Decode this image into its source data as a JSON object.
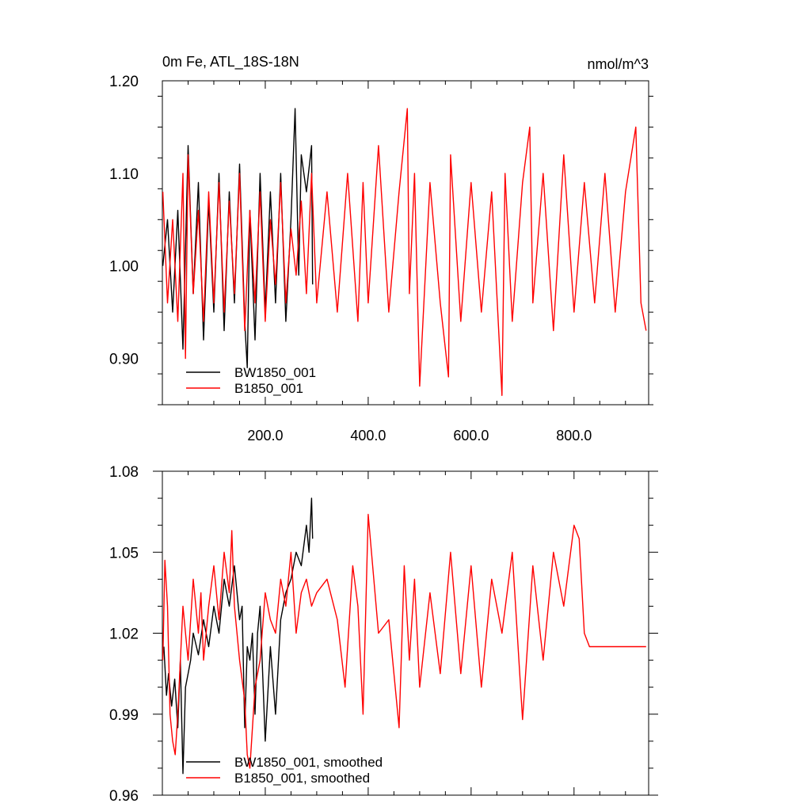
{
  "chart_data": [
    {
      "type": "line",
      "title": "0m Fe, ATL_18S-18N",
      "units": "nmol/m^3",
      "xlim": [
        0,
        945
      ],
      "ylim": [
        0.85,
        1.2
      ],
      "x_tick_values": [
        200,
        400,
        600,
        800
      ],
      "x_tick_labels": [
        "200.0",
        "400.0",
        "600.0",
        "800.0"
      ],
      "y_tick_values": [
        0.9,
        1.0,
        1.1,
        1.2
      ],
      "y_tick_labels": [
        "0.90",
        "1.00",
        "1.10",
        "1.20"
      ],
      "legend_location": "bottom-left",
      "series": [
        {
          "name": "BW1850_001",
          "color": "#000000",
          "x": [
            1,
            10,
            20,
            30,
            40,
            50,
            60,
            70,
            80,
            90,
            100,
            110,
            120,
            130,
            140,
            150,
            160,
            165,
            170,
            180,
            190,
            200,
            210,
            220,
            230,
            240,
            250,
            258,
            265,
            270,
            280,
            290,
            292
          ],
          "values": [
            1.0,
            1.05,
            0.95,
            1.06,
            0.91,
            1.13,
            0.97,
            1.09,
            0.92,
            1.07,
            0.95,
            1.1,
            0.93,
            1.08,
            0.96,
            1.11,
            0.94,
            0.89,
            1.06,
            0.92,
            1.1,
            0.95,
            1.08,
            0.96,
            1.1,
            0.94,
            1.05,
            1.17,
            0.99,
            1.12,
            1.08,
            1.13,
            0.98
          ]
        },
        {
          "name": "B1850_001",
          "color": "#ff0000",
          "x": [
            1,
            10,
            20,
            30,
            40,
            45,
            50,
            60,
            70,
            80,
            90,
            100,
            110,
            120,
            130,
            140,
            150,
            160,
            170,
            180,
            190,
            200,
            210,
            220,
            230,
            240,
            250,
            260,
            270,
            280,
            290,
            300,
            320,
            340,
            360,
            380,
            390,
            400,
            420,
            440,
            460,
            476,
            480,
            490,
            500,
            520,
            540,
            556,
            560,
            580,
            600,
            620,
            640,
            660,
            666,
            680,
            700,
            714,
            720,
            740,
            760,
            780,
            800,
            820,
            840,
            860,
            880,
            900,
            920,
            930,
            940
          ],
          "values": [
            1.08,
            0.96,
            1.05,
            0.94,
            1.1,
            0.9,
            1.12,
            0.97,
            1.06,
            0.94,
            1.08,
            0.96,
            1.09,
            0.95,
            1.07,
            0.97,
            1.1,
            0.93,
            1.06,
            0.96,
            1.08,
            0.94,
            1.05,
            0.98,
            1.09,
            0.96,
            1.04,
            0.99,
            1.07,
            0.97,
            1.1,
            0.96,
            1.08,
            0.95,
            1.1,
            0.94,
            1.09,
            0.96,
            1.13,
            0.95,
            1.08,
            1.17,
            0.97,
            1.1,
            0.87,
            1.09,
            0.96,
            0.88,
            1.12,
            0.94,
            1.09,
            0.95,
            1.08,
            0.86,
            1.1,
            0.94,
            1.09,
            1.15,
            0.96,
            1.1,
            0.93,
            1.12,
            0.95,
            1.09,
            0.96,
            1.1,
            0.95,
            1.08,
            1.15,
            0.96,
            0.93
          ]
        }
      ]
    },
    {
      "type": "line",
      "xlim": [
        0,
        945
      ],
      "ylim": [
        0.96,
        1.08
      ],
      "x_tick_values": [
        200,
        400,
        600,
        800
      ],
      "y_tick_values": [
        0.96,
        0.99,
        1.02,
        1.05,
        1.08
      ],
      "y_tick_labels": [
        "0.96",
        "0.99",
        "1.02",
        "1.05",
        "1.08"
      ],
      "legend_location": "bottom-left",
      "series": [
        {
          "name": "BW1850_001, smoothed",
          "color": "#000000",
          "x": [
            3,
            8,
            12,
            18,
            24,
            30,
            35,
            40,
            45,
            50,
            55,
            60,
            70,
            80,
            90,
            100,
            110,
            120,
            130,
            140,
            150,
            155,
            160,
            165,
            170,
            175,
            180,
            185,
            190,
            200,
            210,
            220,
            230,
            240,
            250,
            260,
            270,
            280,
            285,
            290,
            292
          ],
          "values": [
            1.015,
            0.997,
            1.005,
            0.993,
            1.003,
            0.985,
            1.01,
            0.968,
            1.0,
            1.005,
            1.01,
            1.02,
            1.012,
            1.025,
            1.015,
            1.03,
            1.02,
            1.04,
            1.03,
            1.045,
            1.025,
            1.03,
            0.985,
            1.015,
            1.01,
            1.02,
            0.99,
            1.02,
            1.03,
            0.98,
            1.015,
            0.99,
            1.025,
            1.035,
            1.04,
            1.05,
            1.045,
            1.06,
            1.05,
            1.07,
            1.055
          ]
        },
        {
          "name": "B1850_001, smoothed",
          "color": "#ff0000",
          "x": [
            1,
            5,
            10,
            15,
            20,
            25,
            30,
            40,
            50,
            60,
            70,
            75,
            80,
            90,
            100,
            110,
            120,
            130,
            135,
            140,
            150,
            160,
            165,
            170,
            180,
            190,
            200,
            210,
            220,
            230,
            240,
            250,
            260,
            270,
            280,
            290,
            300,
            320,
            340,
            355,
            370,
            380,
            390,
            400,
            420,
            440,
            460,
            470,
            480,
            490,
            500,
            520,
            540,
            560,
            580,
            600,
            620,
            640,
            660,
            680,
            700,
            720,
            740,
            760,
            780,
            800,
            810,
            820,
            830,
            940
          ],
          "values": [
            1.01,
            1.047,
            1.03,
            0.99,
            0.98,
            0.975,
            0.99,
            1.03,
            1.01,
            1.04,
            1.02,
            1.035,
            1.01,
            1.03,
            1.045,
            1.025,
            1.05,
            1.035,
            1.058,
            1.03,
            1.01,
            0.995,
            0.975,
            0.97,
            1.0,
            1.01,
            1.035,
            1.025,
            1.02,
            1.04,
            1.03,
            1.05,
            1.02,
            1.035,
            1.04,
            1.03,
            1.035,
            1.04,
            1.025,
            1.0,
            1.045,
            1.03,
            0.99,
            1.064,
            1.02,
            1.025,
            0.985,
            1.045,
            1.01,
            1.04,
            1.0,
            1.035,
            1.005,
            1.05,
            1.005,
            1.045,
            1.0,
            1.04,
            1.02,
            1.05,
            0.988,
            1.045,
            1.01,
            1.05,
            1.03,
            1.06,
            1.055,
            1.02,
            1.015,
            1.015
          ]
        }
      ]
    }
  ]
}
